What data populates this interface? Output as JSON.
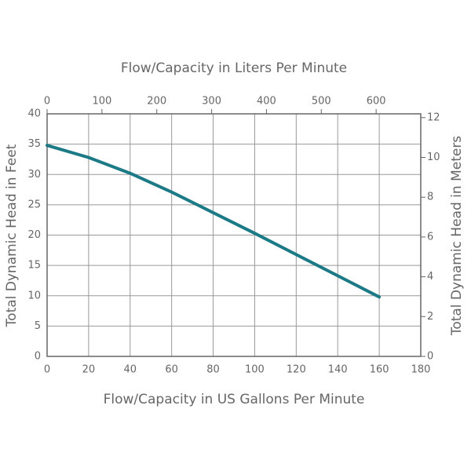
{
  "chart_data": {
    "type": "line",
    "x_label": "Flow/Capacity in US Gallons Per Minute",
    "y_label": "Total Dynamic Head in Feet",
    "x2_label": "Flow/Capacity in Liters Per Minute",
    "y2_label": "Total Dynamic Head in Meters",
    "x": [
      0,
      20,
      40,
      60,
      80,
      100,
      120,
      140,
      160
    ],
    "values": [
      34.8,
      32.8,
      30.2,
      27.1,
      23.7,
      20.3,
      16.8,
      13.3,
      9.8
    ],
    "color": "#1b7a86",
    "xlim": [
      0,
      180
    ],
    "xticks": [
      0,
      20,
      40,
      60,
      80,
      100,
      120,
      140,
      160,
      180
    ],
    "ylim": [
      0,
      40
    ],
    "yticks": [
      0,
      5,
      10,
      15,
      20,
      25,
      30,
      35,
      40
    ],
    "x2lim": [
      0,
      681.37
    ],
    "x2ticks": [
      0,
      100,
      200,
      300,
      400,
      500,
      600
    ],
    "y2lim": [
      0,
      12.19
    ],
    "y2ticks": [
      0,
      2,
      4,
      6,
      8,
      10,
      12
    ],
    "grid": true
  }
}
